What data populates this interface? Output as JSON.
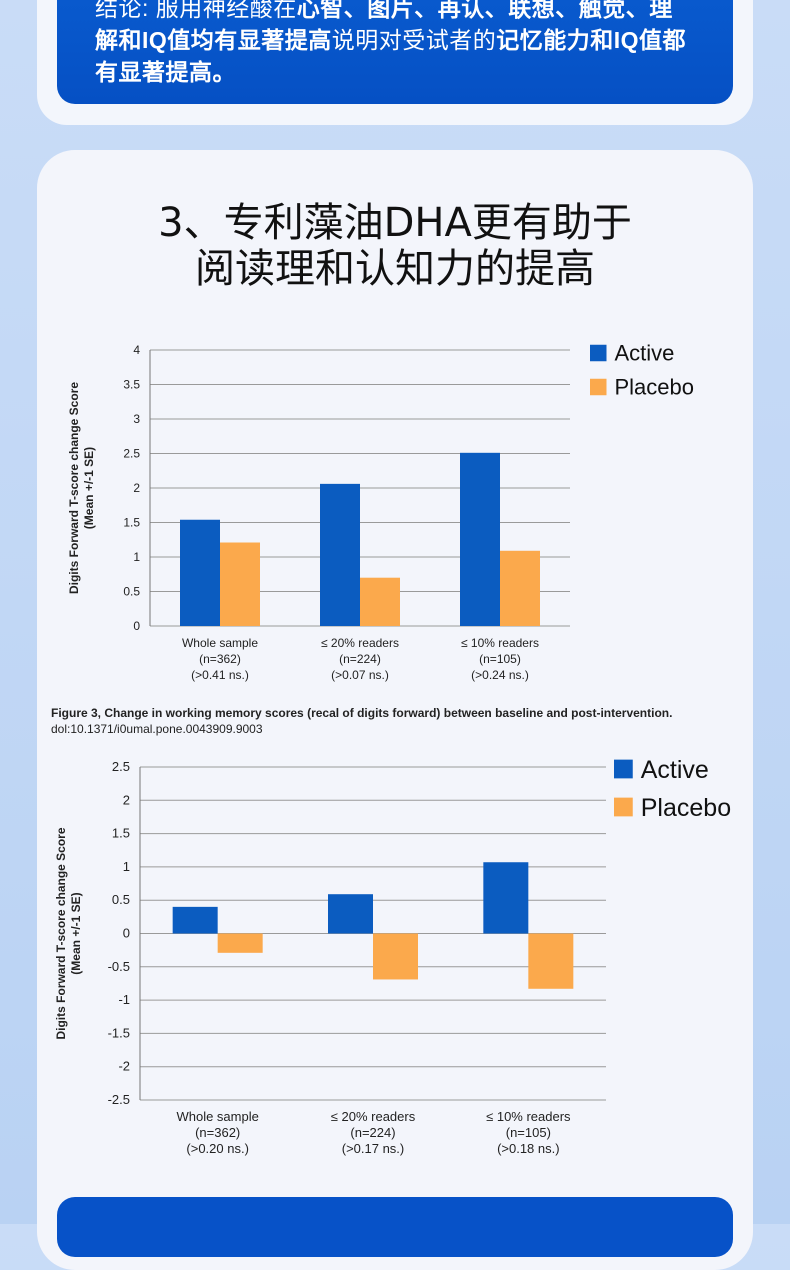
{
  "conclusion": {
    "prefix": "结论: 服用神经酸在",
    "bold1": "心智、图片、再认、联想、触觉、理解和IQ值均有显著提高",
    "middle": "说明对受试者的",
    "bold2": "记忆能力和IQ值都有显著提高。"
  },
  "section_title_line1": "3、专利藻油DHA更有助于",
  "section_title_line2": "阅读理和认知力的提高",
  "caption": {
    "line1": "Figure 3, Change in working memory scores (recal of digits forward) between baseline and post-intervention.",
    "line2": "dol:10.1371/i0umal.pone.0043909.9003"
  },
  "colors": {
    "active": "#0b5cc0",
    "placebo": "#fba94c"
  },
  "chart_data": [
    {
      "type": "bar",
      "ylabel": [
        "Digits Forward T-score change Score",
        "(Mean +/-1 SE)"
      ],
      "ylim": [
        0,
        4
      ],
      "yticks": [
        0,
        0.5,
        1,
        1.5,
        2,
        2.5,
        3,
        3.5,
        4
      ],
      "ytick_labels": [
        "0",
        "0.5",
        "1",
        "1.5",
        "2",
        "2.5",
        "3",
        "3.5",
        "4"
      ],
      "grid": true,
      "legend": "top-right",
      "categories": [
        [
          "Whole sample",
          "(n=362)",
          "(>0.41 ns.)"
        ],
        [
          "≤ 20% readers",
          "(n=224)",
          "(>0.07 ns.)"
        ],
        [
          "≤ 10% readers",
          "(n=105)",
          "(>0.24 ns.)"
        ]
      ],
      "series": [
        {
          "name": "Active",
          "values": [
            1.54,
            2.06,
            2.51
          ]
        },
        {
          "name": "Placebo",
          "values": [
            1.21,
            0.7,
            1.09
          ]
        }
      ]
    },
    {
      "type": "bar",
      "ylabel": [
        "Digits Forward T-score change Score",
        "(Mean +/-1 SE)"
      ],
      "ylim": [
        -2.5,
        2.5
      ],
      "yticks": [
        -2.5,
        -2,
        -1.5,
        -1,
        -0.5,
        0,
        0.5,
        1,
        1.5,
        2,
        2.5
      ],
      "ytick_labels": [
        "-2.5",
        "-2",
        "-1.5",
        "-1",
        "-0.5",
        "0",
        "0.5",
        "1",
        "1.5",
        "2",
        "2.5"
      ],
      "grid": true,
      "legend": "top-right",
      "categories": [
        [
          "Whole sample",
          "(n=362)",
          "(>0.20 ns.)"
        ],
        [
          "≤ 20% readers",
          "(n=224)",
          "(>0.17 ns.)"
        ],
        [
          "≤ 10% readers",
          "(n=105)",
          "(>0.18 ns.)"
        ]
      ],
      "series": [
        {
          "name": "Active",
          "values": [
            0.4,
            0.59,
            1.07
          ]
        },
        {
          "name": "Placebo",
          "values": [
            -0.29,
            -0.69,
            -0.83
          ]
        }
      ]
    }
  ]
}
